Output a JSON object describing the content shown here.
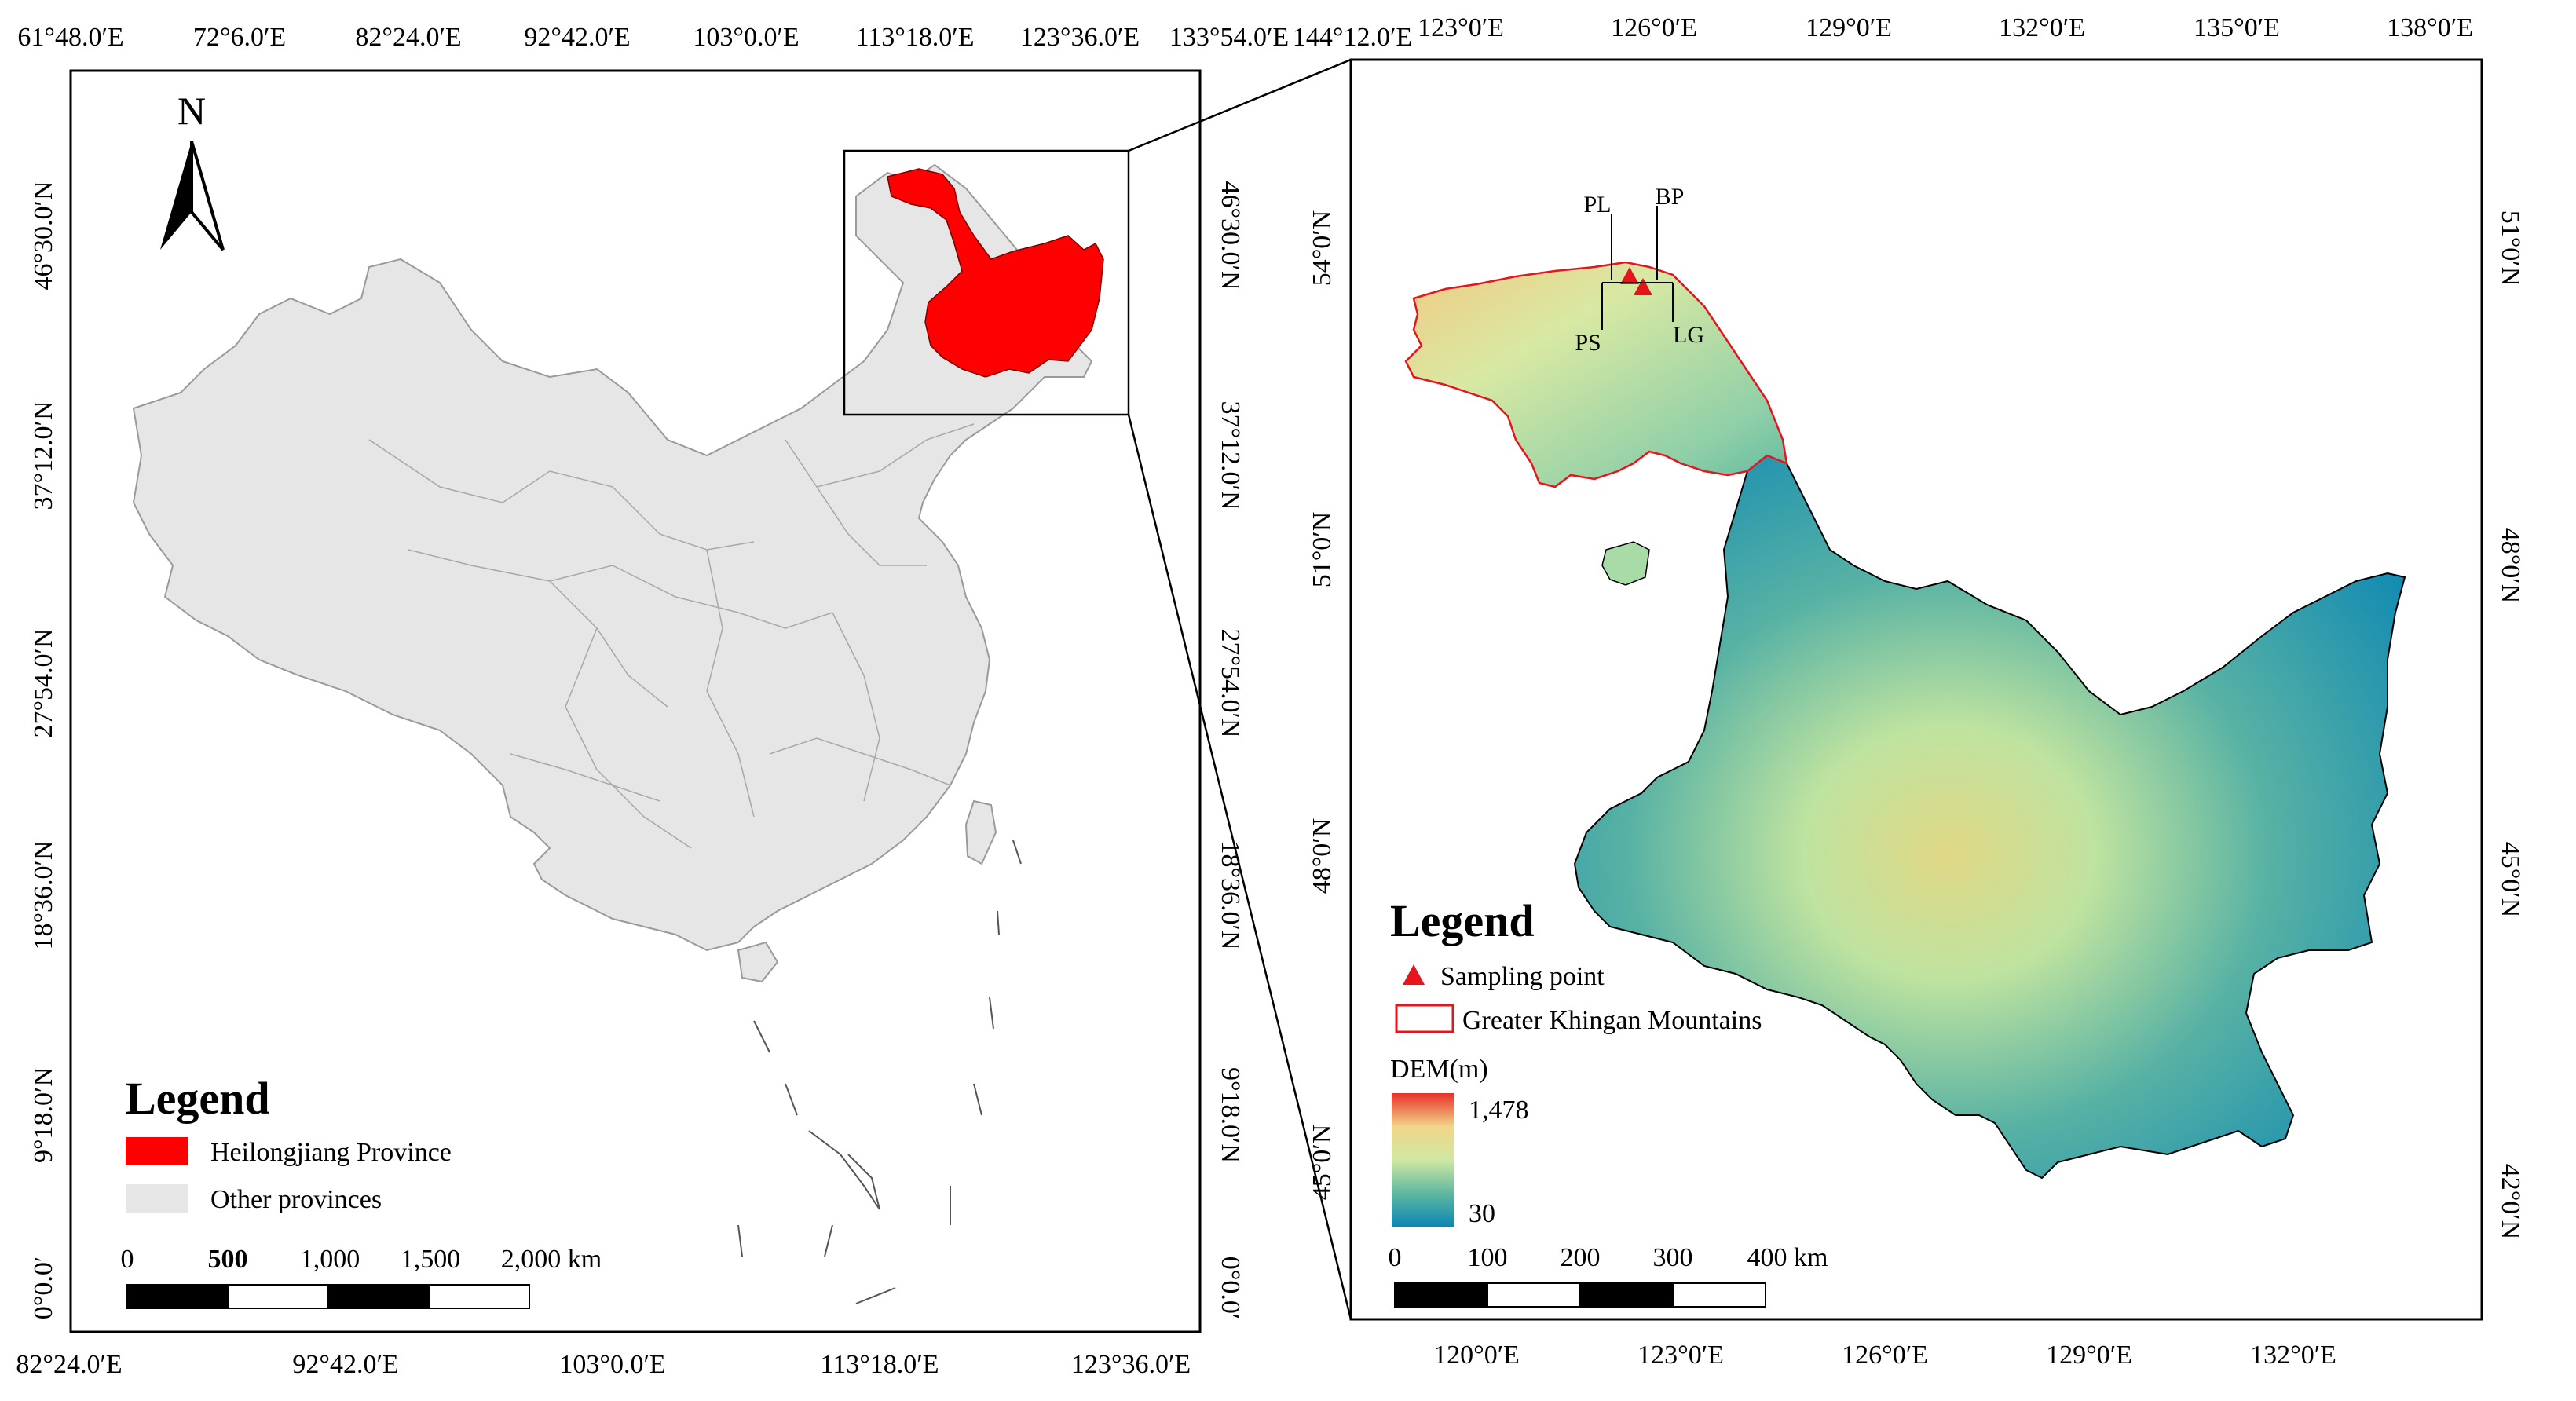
{
  "colors": {
    "heilongjiang": "#ff0000",
    "other_provinces": "#e6e6e6",
    "province_border": "#9a9a9a",
    "sampling_point": "#e8141c",
    "greater_khingan_outline": "#e8141c",
    "dem_high": "#e8302a",
    "dem_mid_high": "#f2d58a",
    "dem_mid": "#cfe8a2",
    "dem_mid_low": "#5fb8a0",
    "dem_low": "#0b86b4"
  },
  "left_map": {
    "north_arrow": {
      "label": "N"
    },
    "top_ticks": [
      "61°48.0′E",
      "72°6.0′E",
      "82°24.0′E",
      "92°42.0′E",
      "103°0.0′E",
      "113°18.0′E",
      "123°36.0′E",
      "133°54.0′E",
      "144°12.0′E"
    ],
    "bottom_ticks": [
      "82°24.0′E",
      "92°42.0′E",
      "103°0.0′E",
      "113°18.0′E",
      "123°36.0′E"
    ],
    "left_ticks": [
      "46°30.0′N",
      "37°12.0′N",
      "27°54.0′N",
      "18°36.0′N",
      "9°18.0′N",
      "0°0.0′"
    ],
    "right_ticks": [
      "46°30.0′N",
      "37°12.0′N",
      "27°54.0′N",
      "18°36.0′N",
      "9°18.0′N",
      "0°0.0′"
    ],
    "legend": {
      "title": "Legend",
      "items": [
        {
          "label": "Heilongjiang Province",
          "color": "#ff0000"
        },
        {
          "label": "Other provinces",
          "color": "#e6e6e6"
        }
      ]
    },
    "scale_bar": {
      "labels": [
        "0",
        "500",
        "1,000",
        "1,500",
        "2,000 km"
      ]
    }
  },
  "right_map": {
    "top_ticks": [
      "123°0′E",
      "126°0′E",
      "129°0′E",
      "132°0′E",
      "135°0′E",
      "138°0′E"
    ],
    "bottom_ticks": [
      "120°0′E",
      "123°0′E",
      "126°0′E",
      "129°0′E",
      "132°0′E"
    ],
    "left_ticks": [
      "54°0′N",
      "51°0′N",
      "48°0′N",
      "45°0′N"
    ],
    "right_ticks": [
      "51°0′N",
      "48°0′N",
      "45°0′N",
      "42°0′N"
    ],
    "sites": [
      "PL",
      "BP",
      "PS",
      "LG"
    ],
    "legend": {
      "title": "Legend",
      "sampling_point": "Sampling point",
      "greater_khingan": "Greater Khingan Mountains",
      "dem_label": "DEM(m)",
      "dem_max": "1,478",
      "dem_min": "30"
    },
    "scale_bar": {
      "labels": [
        "0",
        "100",
        "200",
        "300",
        "400 km"
      ]
    }
  }
}
